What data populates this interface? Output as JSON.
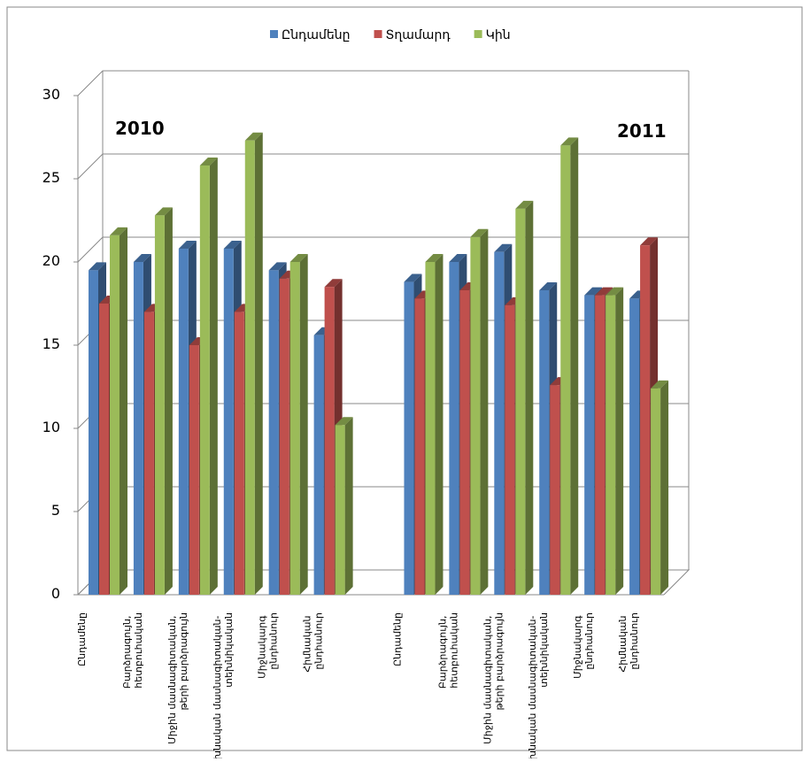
{
  "chart_data": {
    "type": "bar3d",
    "categories": [
      "Ընդամենը",
      "Բարձրագույն, հետբուհական",
      "Միջին մասնագիտական, թերի բարձրագույն",
      "Նախնական մասնագիտական- տեխնիկական",
      "Միջնակարգ ընդհանուր",
      "Հիմնական ընդհանուր",
      null,
      "Ընդամենը",
      "Բարձրագույն, հետբուհական",
      "Միջին մասնագիտական, թերի բարձրագույն",
      "Նախնական մասնագիտական- տեխնիկական",
      "Միջնակարգ ընդհանուր",
      "Հիմնական ընդհանուր"
    ],
    "series": [
      {
        "name": "Ընդամենը",
        "color": "#4f81bd",
        "values": [
          19.5,
          20,
          20.8,
          20.8,
          19.5,
          15.6,
          null,
          18.8,
          20,
          20.6,
          18.3,
          18,
          17.8
        ]
      },
      {
        "name": "Տղամարդ",
        "color": "#c0504d",
        "values": [
          17.5,
          17,
          15,
          17,
          19,
          18.5,
          null,
          17.8,
          18.3,
          17.4,
          12.6,
          18,
          21
        ]
      },
      {
        "name": "Կին",
        "color": "#9bbb59",
        "values": [
          21.6,
          22.8,
          25.8,
          27.3,
          20,
          10.2,
          null,
          20,
          21.5,
          23.2,
          27,
          18,
          12.4
        ]
      }
    ],
    "annotations": [
      "2010",
      "2011"
    ],
    "ylim": [
      0,
      30
    ],
    "yticks": [
      0,
      5,
      10,
      15,
      20,
      25,
      30
    ],
    "grid": true,
    "legend": "top"
  }
}
